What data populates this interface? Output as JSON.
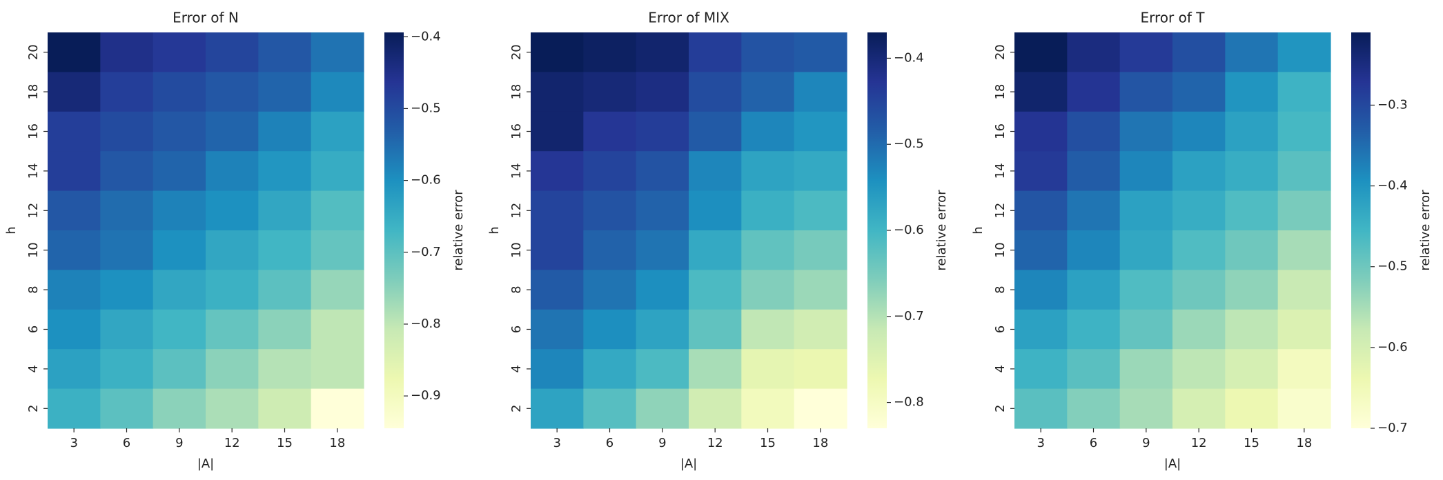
{
  "chart_data": [
    {
      "type": "heatmap",
      "title": "Error of N",
      "xlabel": "|A|",
      "ylabel": "h",
      "colorbar_label": "relative error",
      "colormap": "YlGnBu_r",
      "categories": [
        3,
        6,
        9,
        12,
        15,
        18
      ],
      "y_categories": [
        20,
        18,
        16,
        14,
        12,
        10,
        8,
        6,
        4,
        2
      ],
      "values": [
        [
          -0.39,
          -0.45,
          -0.47,
          -0.49,
          -0.52,
          -0.56
        ],
        [
          -0.43,
          -0.48,
          -0.5,
          -0.52,
          -0.54,
          -0.59
        ],
        [
          -0.48,
          -0.5,
          -0.52,
          -0.54,
          -0.58,
          -0.63
        ],
        [
          -0.48,
          -0.52,
          -0.54,
          -0.58,
          -0.61,
          -0.65
        ],
        [
          -0.52,
          -0.55,
          -0.58,
          -0.6,
          -0.64,
          -0.69
        ],
        [
          -0.54,
          -0.56,
          -0.6,
          -0.64,
          -0.67,
          -0.71
        ],
        [
          -0.58,
          -0.6,
          -0.64,
          -0.66,
          -0.7,
          -0.76
        ],
        [
          -0.6,
          -0.64,
          -0.67,
          -0.71,
          -0.75,
          -0.8
        ],
        [
          -0.63,
          -0.66,
          -0.7,
          -0.75,
          -0.79,
          -0.8
        ],
        [
          -0.66,
          -0.7,
          -0.75,
          -0.78,
          -0.82,
          -0.945
        ]
      ],
      "clim": [
        -0.945,
        -0.394
      ],
      "cticks": [
        {
          "value": -0.4,
          "label": "−0.4"
        },
        {
          "value": -0.5,
          "label": "−0.5"
        },
        {
          "value": -0.6,
          "label": "−0.6"
        },
        {
          "value": -0.7,
          "label": "−0.7"
        },
        {
          "value": -0.8,
          "label": "−0.8"
        },
        {
          "value": -0.9,
          "label": "−0.9"
        }
      ]
    },
    {
      "type": "heatmap",
      "title": "Error of MIX",
      "xlabel": "|A|",
      "ylabel": "h",
      "colorbar_label": "relative error",
      "colormap": "YlGnBu_r",
      "categories": [
        3,
        6,
        9,
        12,
        15,
        18
      ],
      "y_categories": [
        20,
        18,
        16,
        14,
        12,
        10,
        8,
        6,
        4,
        2
      ],
      "values": [
        [
          -0.37,
          -0.38,
          -0.39,
          -0.44,
          -0.47,
          -0.48
        ],
        [
          -0.39,
          -0.4,
          -0.41,
          -0.46,
          -0.49,
          -0.53
        ],
        [
          -0.39,
          -0.43,
          -0.44,
          -0.48,
          -0.53,
          -0.55
        ],
        [
          -0.43,
          -0.45,
          -0.47,
          -0.53,
          -0.57,
          -0.58
        ],
        [
          -0.45,
          -0.47,
          -0.49,
          -0.54,
          -0.59,
          -0.61
        ],
        [
          -0.45,
          -0.49,
          -0.51,
          -0.58,
          -0.63,
          -0.65
        ],
        [
          -0.48,
          -0.51,
          -0.54,
          -0.61,
          -0.66,
          -0.68
        ],
        [
          -0.51,
          -0.54,
          -0.57,
          -0.63,
          -0.71,
          -0.73
        ],
        [
          -0.53,
          -0.58,
          -0.61,
          -0.69,
          -0.76,
          -0.77
        ],
        [
          -0.57,
          -0.62,
          -0.67,
          -0.73,
          -0.79,
          -0.83
        ]
      ],
      "clim": [
        -0.83,
        -0.37
      ],
      "cticks": [
        {
          "value": -0.4,
          "label": "−0.4"
        },
        {
          "value": -0.5,
          "label": "−0.5"
        },
        {
          "value": -0.6,
          "label": "−0.6"
        },
        {
          "value": -0.7,
          "label": "−0.7"
        },
        {
          "value": -0.8,
          "label": "−0.8"
        }
      ]
    },
    {
      "type": "heatmap",
      "title": "Error of T",
      "xlabel": "|A|",
      "ylabel": "h",
      "colorbar_label": "relative error",
      "colormap": "YlGnBu_r",
      "categories": [
        3,
        6,
        9,
        12,
        15,
        18
      ],
      "y_categories": [
        20,
        18,
        16,
        14,
        12,
        10,
        8,
        6,
        4,
        2
      ],
      "values": [
        [
          -0.21,
          -0.25,
          -0.28,
          -0.31,
          -0.36,
          -0.4
        ],
        [
          -0.23,
          -0.27,
          -0.32,
          -0.34,
          -0.4,
          -0.45
        ],
        [
          -0.27,
          -0.31,
          -0.36,
          -0.38,
          -0.42,
          -0.46
        ],
        [
          -0.28,
          -0.33,
          -0.38,
          -0.42,
          -0.44,
          -0.48
        ],
        [
          -0.32,
          -0.36,
          -0.42,
          -0.44,
          -0.47,
          -0.51
        ],
        [
          -0.34,
          -0.38,
          -0.43,
          -0.47,
          -0.5,
          -0.55
        ],
        [
          -0.38,
          -0.42,
          -0.47,
          -0.5,
          -0.53,
          -0.58
        ],
        [
          -0.42,
          -0.45,
          -0.49,
          -0.54,
          -0.57,
          -0.61
        ],
        [
          -0.45,
          -0.48,
          -0.54,
          -0.57,
          -0.6,
          -0.66
        ],
        [
          -0.48,
          -0.52,
          -0.55,
          -0.6,
          -0.64,
          -0.68
        ]
      ],
      "clim": [
        -0.7,
        -0.21
      ],
      "cticks": [
        {
          "value": -0.3,
          "label": "−0.3"
        },
        {
          "value": -0.4,
          "label": "−0.4"
        },
        {
          "value": -0.5,
          "label": "−0.5"
        },
        {
          "value": -0.6,
          "label": "−0.6"
        },
        {
          "value": -0.7,
          "label": "−0.7"
        }
      ]
    }
  ]
}
